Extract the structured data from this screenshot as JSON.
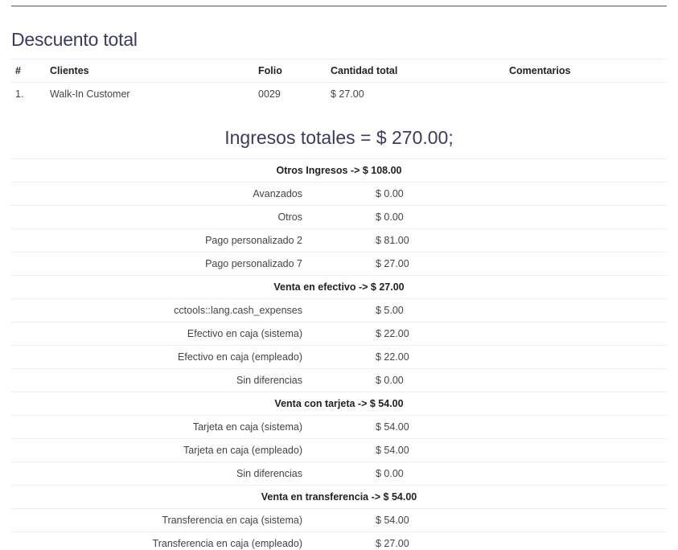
{
  "discount_section": {
    "title": "Descuento total",
    "columns": [
      "#",
      "Clientes",
      "Folio",
      "Cantidad total",
      "Comentarios"
    ],
    "rows": [
      {
        "num": "1.",
        "client": "Walk-In Customer",
        "folio": "0029",
        "amount": "$ 27.00",
        "comment": ""
      }
    ]
  },
  "income_section": {
    "title": "Ingresos totales = $ 270.00;",
    "rows": [
      {
        "type": "group",
        "text": "Otros Ingresos -> $ 108.00"
      },
      {
        "type": "item",
        "label": "Avanzados",
        "value": "$ 0.00"
      },
      {
        "type": "item",
        "label": "Otros",
        "value": "$ 0.00"
      },
      {
        "type": "item",
        "label": "Pago personalizado 2",
        "value": "$ 81.00"
      },
      {
        "type": "item",
        "label": "Pago personalizado 7",
        "value": "$ 27.00"
      },
      {
        "type": "group",
        "text": "Venta en efectivo -> $ 27.00"
      },
      {
        "type": "item",
        "label": "cctools::lang.cash_expenses",
        "value": "$ 5.00"
      },
      {
        "type": "item",
        "label": "Efectivo en caja (sistema)",
        "value": "$ 22.00"
      },
      {
        "type": "item",
        "label": "Efectivo en caja (empleado)",
        "value": "$ 22.00"
      },
      {
        "type": "item",
        "label": "Sin diferencias",
        "value": "$ 0.00"
      },
      {
        "type": "group",
        "text": "Venta con tarjeta -> $ 54.00"
      },
      {
        "type": "item",
        "label": "Tarjeta en caja (sistema)",
        "value": "$ 54.00"
      },
      {
        "type": "item",
        "label": "Tarjeta en caja (empleado)",
        "value": "$ 54.00"
      },
      {
        "type": "item",
        "label": "Sin diferencias",
        "value": "$ 0.00"
      },
      {
        "type": "group",
        "text": "Venta en transferencia -> $ 54.00"
      },
      {
        "type": "item",
        "label": "Transferencia en caja (sistema)",
        "value": "$ 54.00"
      },
      {
        "type": "item",
        "label": "Transferencia en caja (empleado)",
        "value": "$ 27.00"
      }
    ]
  }
}
